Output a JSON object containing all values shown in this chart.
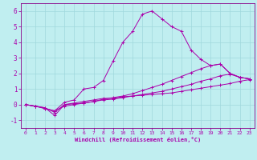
{
  "xlabel": "Windchill (Refroidissement éolien,°C)",
  "background_color": "#c0eef0",
  "grid_color": "#a0d8dc",
  "line_color": "#aa00aa",
  "spine_color": "#880088",
  "xlim": [
    -0.5,
    23.5
  ],
  "ylim": [
    -1.5,
    6.5
  ],
  "yticks": [
    -1,
    0,
    1,
    2,
    3,
    4,
    5,
    6
  ],
  "xticks": [
    0,
    1,
    2,
    3,
    4,
    5,
    6,
    7,
    8,
    9,
    10,
    11,
    12,
    13,
    14,
    15,
    16,
    17,
    18,
    19,
    20,
    21,
    22,
    23
  ],
  "series": [
    [
      0.0,
      -0.1,
      -0.2,
      -0.7,
      0.0,
      0.1,
      0.2,
      0.3,
      0.4,
      0.4,
      0.5,
      0.55,
      0.6,
      0.65,
      0.7,
      0.75,
      0.85,
      0.95,
      1.05,
      1.15,
      1.25,
      1.35,
      1.5,
      1.6
    ],
    [
      0.0,
      -0.1,
      -0.2,
      -0.5,
      0.0,
      0.05,
      0.1,
      0.2,
      0.3,
      0.35,
      0.45,
      0.55,
      0.65,
      0.75,
      0.85,
      1.0,
      1.15,
      1.3,
      1.5,
      1.65,
      1.85,
      1.95,
      1.75,
      1.65
    ],
    [
      0.0,
      -0.1,
      -0.25,
      -0.4,
      -0.1,
      0.0,
      0.1,
      0.2,
      0.35,
      0.45,
      0.55,
      0.7,
      0.9,
      1.1,
      1.3,
      1.55,
      1.8,
      2.05,
      2.3,
      2.5,
      2.6,
      2.0,
      1.75,
      1.65
    ],
    [
      0.0,
      -0.1,
      -0.25,
      -0.4,
      0.15,
      0.3,
      1.0,
      1.1,
      1.55,
      2.8,
      4.0,
      4.7,
      5.8,
      6.0,
      5.5,
      5.0,
      4.7,
      3.5,
      2.9,
      2.5,
      2.6,
      2.0,
      1.75,
      1.65
    ]
  ]
}
